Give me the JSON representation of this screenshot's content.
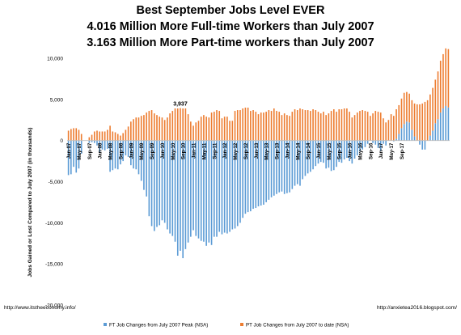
{
  "chart_data": {
    "type": "bar",
    "title_lines": [
      "Best September Jobs Level EVER",
      "4.016 Million More Full-time Workers than July 2007",
      "3.163 Million More Part-time workers than July 2007"
    ],
    "ylabel": "Jobs Gained or Lost Compared to July 2007 (in thousands)",
    "ylim": [
      -20000,
      10000
    ],
    "yticks": [
      "10,000",
      "5,000",
      "0",
      "-5,000",
      "-10,000",
      "-15,000",
      "-20,000"
    ],
    "ytick_values": [
      10000,
      5000,
      0,
      -5000,
      -10000,
      -15000,
      -20000
    ],
    "xtick_labels": [
      "Jan-07",
      "May-07",
      "Sep-07",
      "Jan-08",
      "May-08",
      "Sep-08",
      "Jan-09",
      "May-09",
      "Sep-09",
      "Jan-10",
      "May-10",
      "Sep-10",
      "Jan-11",
      "May-11",
      "Sep-11",
      "Jan-12",
      "May-12",
      "Sep-12",
      "Jan-13",
      "May-13",
      "Sep-13",
      "Jan-14",
      "May-14",
      "Sep-14",
      "Jan-15",
      "May-15",
      "Sep-15",
      "Jan-16",
      "May-16",
      "Sep-16",
      "Jan-17",
      "May-17",
      "Sep-17"
    ],
    "series": [
      {
        "name": "FT Job Changes from July 2007 Peak (NSA)",
        "color": "#5B9BD5",
        "values": [
          -4200,
          -4100,
          -3200,
          -3900,
          -3400,
          -1600,
          0,
          0,
          -300,
          -200,
          -300,
          -600,
          -1400,
          -1100,
          -1200,
          -1000,
          -3800,
          -3600,
          -3400,
          -3500,
          -2900,
          -2500,
          -1800,
          -2000,
          -3000,
          -3400,
          -3500,
          -4100,
          -4900,
          -6000,
          -6800,
          -9200,
          -10400,
          -11000,
          -10500,
          -10300,
          -9700,
          -10000,
          -10800,
          -11300,
          -11600,
          -12300,
          -14000,
          -13400,
          -14300,
          -13200,
          -12400,
          -11700,
          -10900,
          -11600,
          -11900,
          -12200,
          -12300,
          -12800,
          -12400,
          -12700,
          -11700,
          -11700,
          -11100,
          -11400,
          -11200,
          -11300,
          -11100,
          -10800,
          -10700,
          -10400,
          -10000,
          -9400,
          -8900,
          -8700,
          -8600,
          -8300,
          -8200,
          -8000,
          -7900,
          -7800,
          -7500,
          -7200,
          -6900,
          -6700,
          -6500,
          -6300,
          -6200,
          -6500,
          -6400,
          -6300,
          -5900,
          -5500,
          -5300,
          -5500,
          -4700,
          -4300,
          -4000,
          -3800,
          -3500,
          -3100,
          -2800,
          -2600,
          -2700,
          -3400,
          -3300,
          -3700,
          -3600,
          -3200,
          -2600,
          -2700,
          -2300,
          -2100,
          -2500,
          -2800,
          -2200,
          -1800,
          -1300,
          -1100,
          -800,
          -400,
          0,
          -300,
          -500,
          -900,
          -1200,
          -400,
          -600,
          0,
          0,
          -100,
          200,
          800,
          1500,
          2000,
          2300,
          2200,
          1300,
          500,
          0,
          -500,
          -1100,
          -1100,
          0,
          600,
          1200,
          2100,
          2600,
          3400,
          3900,
          4200,
          4016
        ]
      },
      {
        "name": "PT Job Changes from July 2007 to date (NSA)",
        "color": "#ED7D31",
        "values": [
          1200,
          1400,
          1500,
          1500,
          1300,
          800,
          0,
          0,
          400,
          700,
          1100,
          1200,
          1100,
          1100,
          1100,
          1300,
          1800,
          1100,
          1000,
          800,
          600,
          900,
          1300,
          1700,
          2300,
          2600,
          2800,
          2800,
          3000,
          3100,
          3400,
          3600,
          3700,
          3300,
          3100,
          2900,
          2800,
          2500,
          2800,
          3300,
          3600,
          3900,
          3900,
          3937,
          3900,
          3900,
          3200,
          2300,
          1800,
          2200,
          2400,
          2900,
          3100,
          2900,
          2800,
          3400,
          3500,
          3700,
          3600,
          2700,
          2900,
          2900,
          2400,
          2400,
          3600,
          3700,
          3700,
          3900,
          4000,
          4000,
          3600,
          3700,
          3500,
          3200,
          3400,
          3400,
          3500,
          3700,
          3600,
          3900,
          3600,
          3500,
          3100,
          3300,
          3100,
          3000,
          3500,
          3800,
          3700,
          3900,
          3800,
          3700,
          3700,
          3600,
          3800,
          3700,
          3500,
          3300,
          3500,
          3100,
          3300,
          3600,
          3800,
          3500,
          3800,
          3800,
          3900,
          3900,
          3500,
          2800,
          3100,
          3400,
          3600,
          3700,
          3600,
          3500,
          3000,
          3300,
          3600,
          3500,
          3400,
          2700,
          2200,
          2500,
          3200,
          3000,
          3600,
          3500,
          3600,
          3800,
          3600,
          3500,
          3600,
          4000,
          4400,
          4400,
          4500,
          4700,
          4900,
          5000,
          5200,
          5300,
          5800,
          6300,
          6600,
          7000,
          7100,
          6800,
          3163
        ]
      }
    ],
    "annotations": [
      {
        "text": "3,937",
        "series": 1,
        "index": 43
      },
      {
        "text": "3,163",
        "series": 1,
        "index": 152
      },
      {
        "text": "4,016",
        "series": 0,
        "index": 152
      }
    ],
    "legend_position": "bottom",
    "grid": false
  },
  "source_left": "http://www.itstheeconomy.info/",
  "source_right": "http://anxietea2016.blogspot.com/"
}
